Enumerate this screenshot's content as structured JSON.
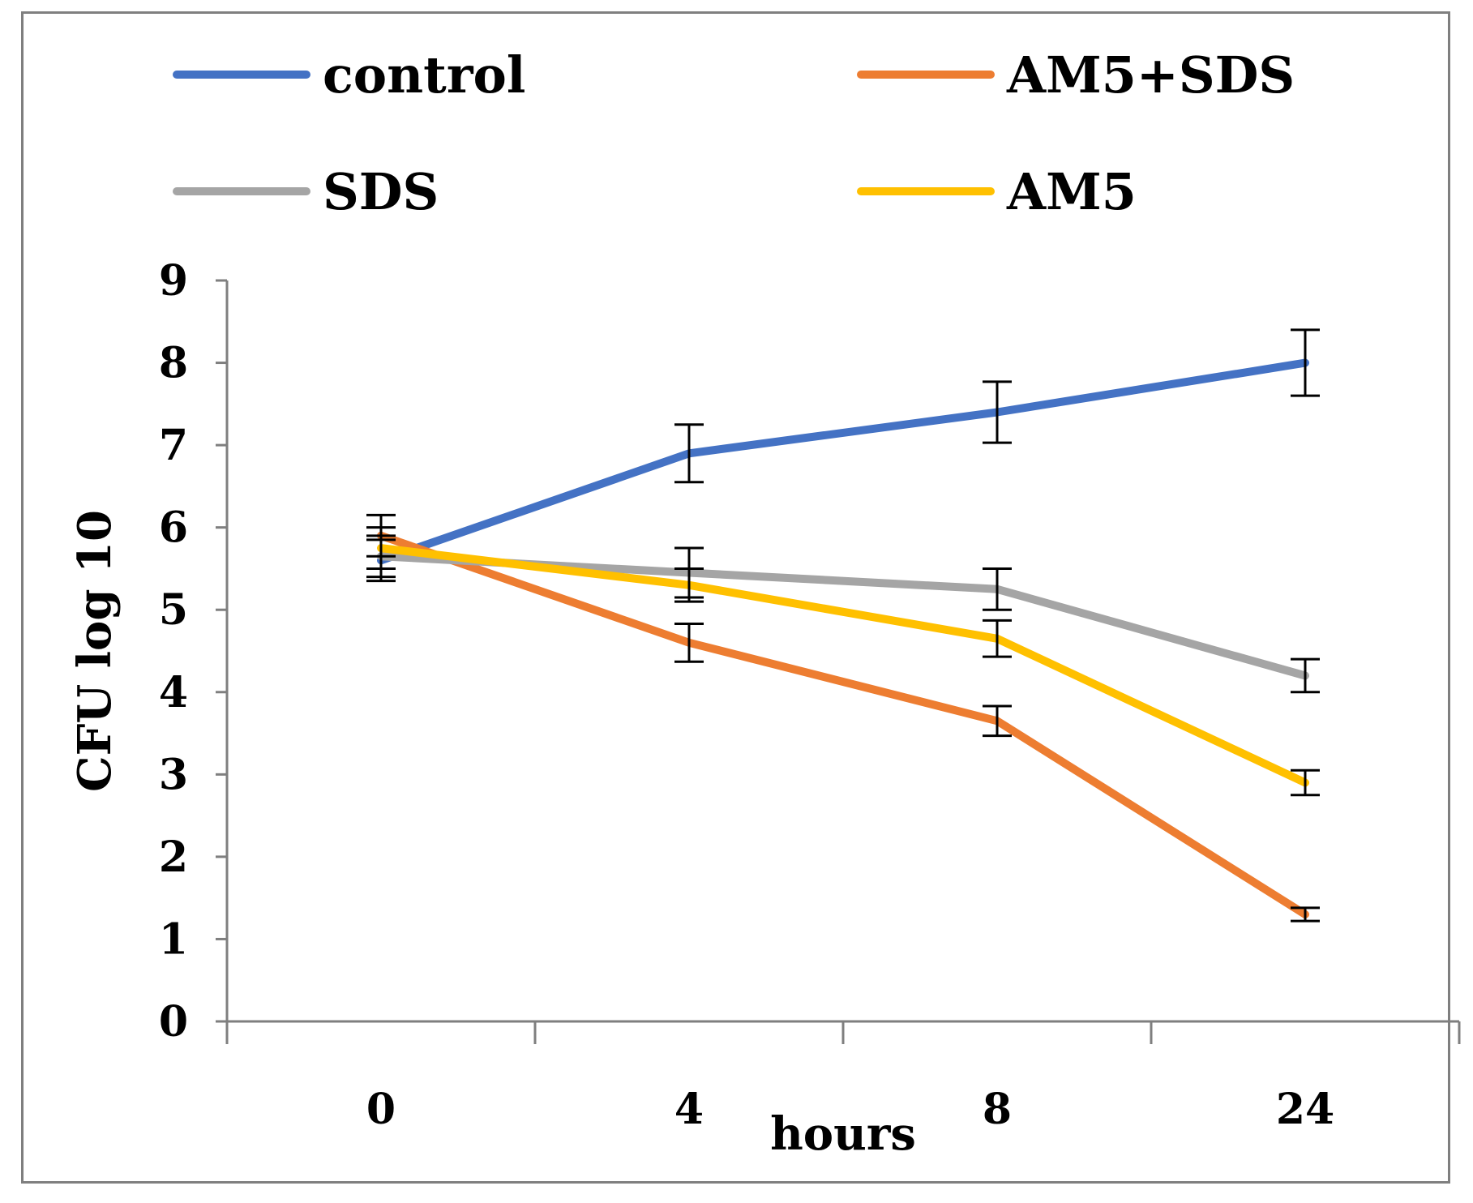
{
  "chart_data": {
    "type": "line",
    "categories": [
      "0",
      "4",
      "8",
      "24"
    ],
    "xlabel": "hours",
    "ylabel": "CFU log 10",
    "ylim": [
      0,
      9
    ],
    "yticks": [
      "0",
      "1",
      "2",
      "3",
      "4",
      "5",
      "6",
      "7",
      "8",
      "9"
    ],
    "grid": false,
    "legend_position": "top",
    "series": [
      {
        "name": "control",
        "color": "#4472c4",
        "values": [
          5.6,
          6.9,
          7.4,
          8.0
        ],
        "errors": [
          0.25,
          0.35,
          0.37,
          0.4
        ]
      },
      {
        "name": "AM5+SDS",
        "color": "#ed7d31",
        "values": [
          5.9,
          4.6,
          3.65,
          1.3
        ],
        "errors": [
          0.25,
          0.23,
          0.18,
          0.08
        ]
      },
      {
        "name": "SDS",
        "color": "#a5a5a5",
        "values": [
          5.65,
          5.45,
          5.25,
          4.2
        ],
        "errors": [
          0.25,
          0.3,
          0.25,
          0.2
        ]
      },
      {
        "name": "AM5",
        "color": "#ffc000",
        "values": [
          5.75,
          5.3,
          4.65,
          2.9
        ],
        "errors": [
          0.25,
          0.2,
          0.22,
          0.15
        ]
      }
    ]
  }
}
